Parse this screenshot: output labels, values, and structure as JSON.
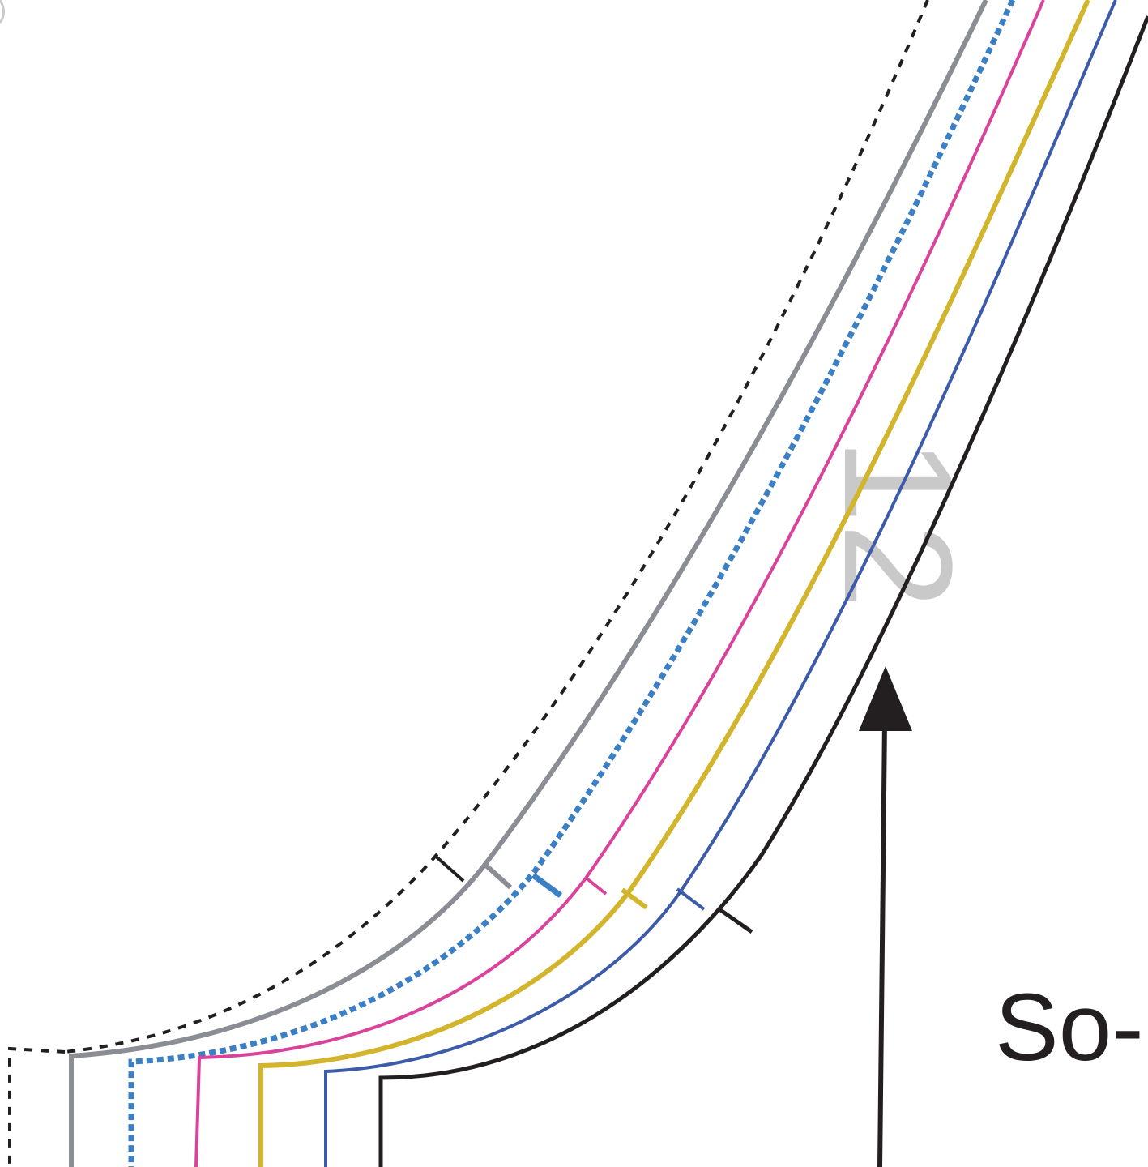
{
  "diagram": {
    "piece_number": "12",
    "cut_label": "So-",
    "colors": {
      "black": "#231f20",
      "gray": "#8a8d94",
      "blue_dashed": "#3b7fc4",
      "pink": "#d9439b",
      "yellow": "#d2b52c",
      "navy": "#3c5ba8",
      "watermark": "#c9c9c9"
    }
  }
}
